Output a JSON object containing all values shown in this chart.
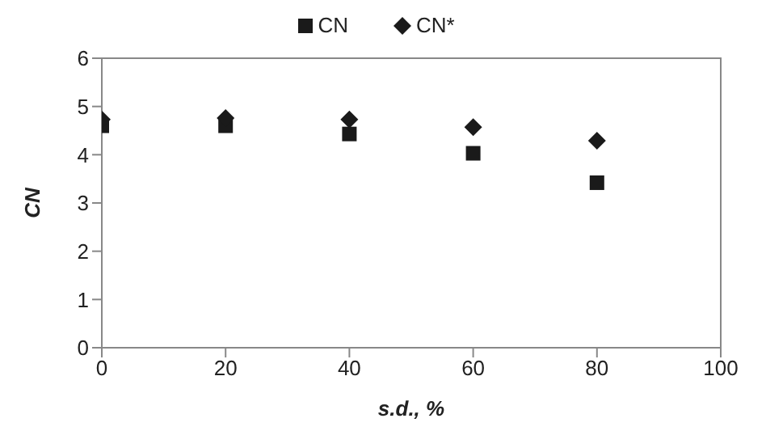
{
  "chart_data": {
    "type": "scatter",
    "xlabel": "s.d., %",
    "ylabel": "CN",
    "x": [
      0,
      20,
      40,
      60,
      80
    ],
    "series": [
      {
        "name": "CN",
        "color": "#1a1a1a",
        "marker": "square",
        "values": [
          4.6,
          4.6,
          4.43,
          4.03,
          3.42
        ]
      },
      {
        "name": "CN*",
        "color": "#1a1a1a",
        "marker": "diamond",
        "values": [
          4.73,
          4.76,
          4.73,
          4.57,
          4.29
        ]
      }
    ],
    "xlim": [
      0,
      100
    ],
    "xticks": [
      0,
      20,
      40,
      60,
      80,
      100
    ],
    "ylim": [
      0,
      6
    ],
    "yticks": [
      0,
      1,
      2,
      3,
      4,
      5,
      6
    ],
    "grid": false,
    "legend": "top"
  }
}
